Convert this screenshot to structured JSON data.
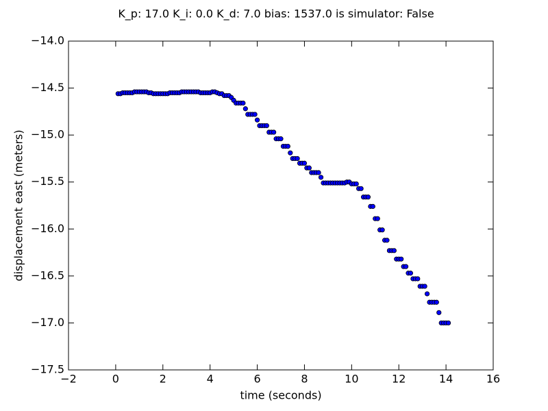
{
  "chart_data": {
    "type": "scatter",
    "title": "K_p: 17.0 K_i: 0.0 K_d: 7.0 bias: 1537.0 is simulator: False",
    "x_label": "time (seconds)",
    "y_label": "displacement east (meters)",
    "color": "#0000ff",
    "x": [
      0.1,
      0.2,
      0.3,
      0.4,
      0.5,
      0.6,
      0.7,
      0.8,
      0.9,
      1.0,
      1.1,
      1.2,
      1.3,
      1.4,
      1.5,
      1.6,
      1.7,
      1.8,
      1.9,
      2.0,
      2.1,
      2.2,
      2.3,
      2.4,
      2.5,
      2.6,
      2.7,
      2.8,
      2.9,
      3.0,
      3.1,
      3.2,
      3.3,
      3.4,
      3.5,
      3.6,
      3.7,
      3.8,
      3.9,
      4.0,
      4.1,
      4.2,
      4.3,
      4.4,
      4.5,
      4.6,
      4.7,
      4.8,
      4.9,
      5.0,
      5.1,
      5.2,
      5.3,
      5.4,
      5.5,
      5.6,
      5.7,
      5.8,
      5.9,
      6.0,
      6.1,
      6.2,
      6.3,
      6.4,
      6.5,
      6.6,
      6.7,
      6.8,
      6.9,
      7.0,
      7.1,
      7.2,
      7.3,
      7.4,
      7.5,
      7.6,
      7.7,
      7.8,
      7.9,
      8.0,
      8.1,
      8.2,
      8.3,
      8.4,
      8.5,
      8.6,
      8.7,
      8.8,
      8.9,
      9.0,
      9.1,
      9.2,
      9.3,
      9.4,
      9.5,
      9.6,
      9.7,
      9.8,
      9.9,
      10.0,
      10.1,
      10.2,
      10.3,
      10.4,
      10.5,
      10.6,
      10.7,
      10.8,
      10.9,
      11.0,
      11.1,
      11.2,
      11.3,
      11.4,
      11.5,
      11.6,
      11.7,
      11.8,
      11.9,
      12.0,
      12.1,
      12.2,
      12.3,
      12.4,
      12.5,
      12.6,
      12.7,
      12.8,
      12.9,
      13.0,
      13.1,
      13.2,
      13.3,
      13.4,
      13.5,
      13.6,
      13.7,
      13.8,
      13.9,
      14.0,
      14.1
    ],
    "values": [
      -14.56,
      -14.56,
      -14.55,
      -14.55,
      -14.55,
      -14.55,
      -14.55,
      -14.54,
      -14.54,
      -14.54,
      -14.54,
      -14.54,
      -14.54,
      -14.55,
      -14.55,
      -14.56,
      -14.56,
      -14.56,
      -14.56,
      -14.56,
      -14.56,
      -14.56,
      -14.55,
      -14.55,
      -14.55,
      -14.55,
      -14.55,
      -14.54,
      -14.54,
      -14.54,
      -14.54,
      -14.54,
      -14.54,
      -14.54,
      -14.54,
      -14.55,
      -14.55,
      -14.55,
      -14.55,
      -14.55,
      -14.54,
      -14.54,
      -14.55,
      -14.56,
      -14.56,
      -14.58,
      -14.58,
      -14.58,
      -14.6,
      -14.63,
      -14.66,
      -14.66,
      -14.66,
      -14.66,
      -14.72,
      -14.78,
      -14.78,
      -14.78,
      -14.78,
      -14.84,
      -14.9,
      -14.9,
      -14.9,
      -14.9,
      -14.97,
      -14.97,
      -14.97,
      -15.04,
      -15.04,
      -15.04,
      -15.12,
      -15.12,
      -15.12,
      -15.19,
      -15.25,
      -15.25,
      -15.25,
      -15.3,
      -15.3,
      -15.3,
      -15.35,
      -15.35,
      -15.4,
      -15.4,
      -15.4,
      -15.4,
      -15.45,
      -15.51,
      -15.51,
      -15.51,
      -15.51,
      -15.51,
      -15.51,
      -15.51,
      -15.51,
      -15.51,
      -15.51,
      -15.5,
      -15.5,
      -15.52,
      -15.52,
      -15.52,
      -15.57,
      -15.57,
      -15.66,
      -15.66,
      -15.66,
      -15.76,
      -15.76,
      -15.89,
      -15.89,
      -16.01,
      -16.01,
      -16.12,
      -16.12,
      -16.23,
      -16.23,
      -16.23,
      -16.32,
      -16.32,
      -16.32,
      -16.4,
      -16.4,
      -16.47,
      -16.47,
      -16.53,
      -16.53,
      -16.53,
      -16.61,
      -16.61,
      -16.61,
      -16.69,
      -16.78,
      -16.78,
      -16.78,
      -16.78,
      -16.89,
      -17.0,
      -17.0,
      -17.0,
      -17.0
    ],
    "xlim": [
      -2,
      16
    ],
    "xticks": [
      {
        "value": -2,
        "label": "−2"
      },
      0,
      2,
      4,
      6,
      8,
      10,
      12,
      14,
      16
    ],
    "ylim": [
      -17.5,
      -14.0
    ],
    "yticks": [
      {
        "value": -17.5,
        "label": "−17.5"
      },
      {
        "value": -17.0,
        "label": "−17.0"
      },
      {
        "value": -16.5,
        "label": "−16.5"
      },
      {
        "value": -16.0,
        "label": "−16.0"
      },
      {
        "value": -15.5,
        "label": "−15.5"
      },
      {
        "value": -15.0,
        "label": "−15.0"
      },
      {
        "value": -14.5,
        "label": "−14.5"
      },
      {
        "value": -14.0,
        "label": "−14.0"
      }
    ],
    "grid": false
  }
}
